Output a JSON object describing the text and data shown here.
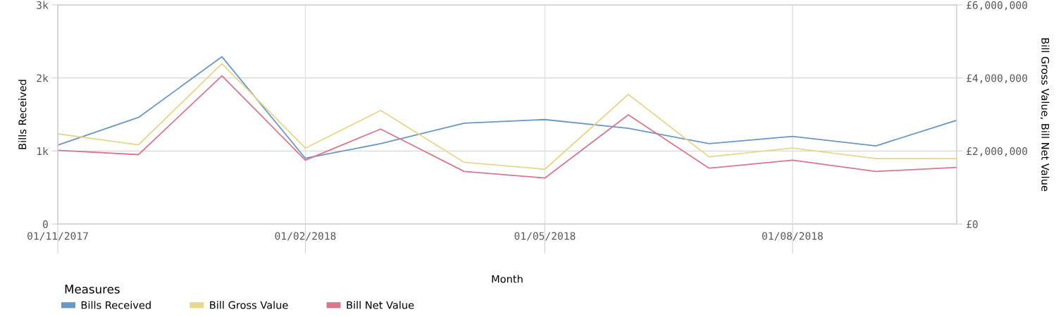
{
  "chart_data": {
    "type": "line",
    "xlabel": "Month",
    "ylabel": "Bills Received",
    "y2label": "Bill Gross Value, Bill Net Value",
    "legend_title": "Measures",
    "legend": "bottom",
    "grid": true,
    "line_style": "solid",
    "marker": "none",
    "x": [
      "2017-11-01",
      "2017-12-01",
      "2018-01-01",
      "2018-02-01",
      "2018-03-01",
      "2018-04-01",
      "2018-05-01",
      "2018-06-01",
      "2018-07-01",
      "2018-08-01",
      "2018-09-01",
      "2018-10-01"
    ],
    "xlim": [
      "2017-11-01",
      "2018-10-01"
    ],
    "xticks": [
      {
        "value": "2017-11-01",
        "label": "01/11/2017"
      },
      {
        "value": "2018-02-01",
        "label": "01/02/2018"
      },
      {
        "value": "2018-05-01",
        "label": "01/05/2018"
      },
      {
        "value": "2018-08-01",
        "label": "01/08/2018"
      }
    ],
    "ylim": [
      0,
      3000
    ],
    "yticks": [
      {
        "value": 0,
        "label": "0"
      },
      {
        "value": 1000,
        "label": "1k"
      },
      {
        "value": 2000,
        "label": "2k"
      },
      {
        "value": 3000,
        "label": "3k"
      }
    ],
    "y2lim": [
      0,
      6000000
    ],
    "y2ticks": [
      {
        "value": 0,
        "label": "£0"
      },
      {
        "value": 2000000,
        "label": "£2,000,000"
      },
      {
        "value": 4000000,
        "label": "£4,000,000"
      },
      {
        "value": 6000000,
        "label": "£6,000,000"
      }
    ],
    "series": [
      {
        "name": "Bills Received",
        "color": "#6a97c4",
        "values": [
          1080,
          1460,
          2290,
          900,
          1100,
          1380,
          1430,
          1310,
          1100,
          1200,
          1070,
          1420
        ]
      },
      {
        "name": "Bill Gross Value",
        "color": "#e6d68e",
        "axis": "y2",
        "values": [
          2470000,
          2170000,
          4390000,
          2080000,
          3110000,
          1690000,
          1500000,
          3550000,
          1840000,
          2080000,
          1790000,
          1790000
        ]
      },
      {
        "name": "Bill Net Value",
        "color": "#d9778c",
        "axis": "y2",
        "values": [
          2020000,
          1900000,
          4060000,
          1750000,
          2600000,
          1440000,
          1260000,
          2990000,
          1530000,
          1750000,
          1440000,
          1550000
        ]
      }
    ]
  }
}
